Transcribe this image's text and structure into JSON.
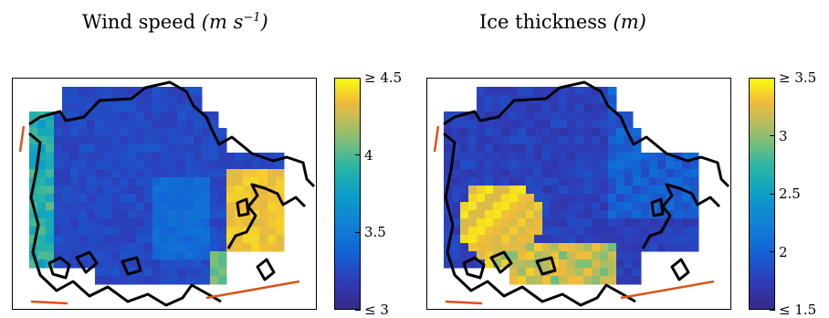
{
  "chart_data": [
    {
      "type": "heatmap",
      "title": "Wind speed",
      "unit_text": "(m s",
      "unit_exp": "−1",
      "unit_close": ")",
      "colorbar": {
        "min": 3,
        "max": 4.5,
        "ticks": [
          {
            "value": 4.5,
            "label": "≥ 4.5"
          },
          {
            "value": 4,
            "label": "4"
          },
          {
            "value": 3.5,
            "label": "3.5"
          },
          {
            "value": 3,
            "label": "≤ 3"
          }
        ]
      },
      "colormap": "parula",
      "description_values": "mostly 3–3.6 over central basin; ≥4.3 along eastern strait and western coast"
    },
    {
      "type": "heatmap",
      "title": "Ice thickness",
      "unit_text": "(m)",
      "colorbar": {
        "min": 1.5,
        "max": 3.5,
        "ticks": [
          {
            "value": 3.5,
            "label": "≥ 3.5"
          },
          {
            "value": 3,
            "label": "3"
          },
          {
            "value": 2.5,
            "label": "2.5"
          },
          {
            "value": 2,
            "label": "2"
          },
          {
            "value": 1.5,
            "label": "≤ 1.5"
          }
        ]
      },
      "colormap": "parula"
    }
  ],
  "colors": {
    "coast": "#000000",
    "boundary": "#d95319",
    "parula_low": "#352a87",
    "parula_high": "#f9fb0e"
  }
}
